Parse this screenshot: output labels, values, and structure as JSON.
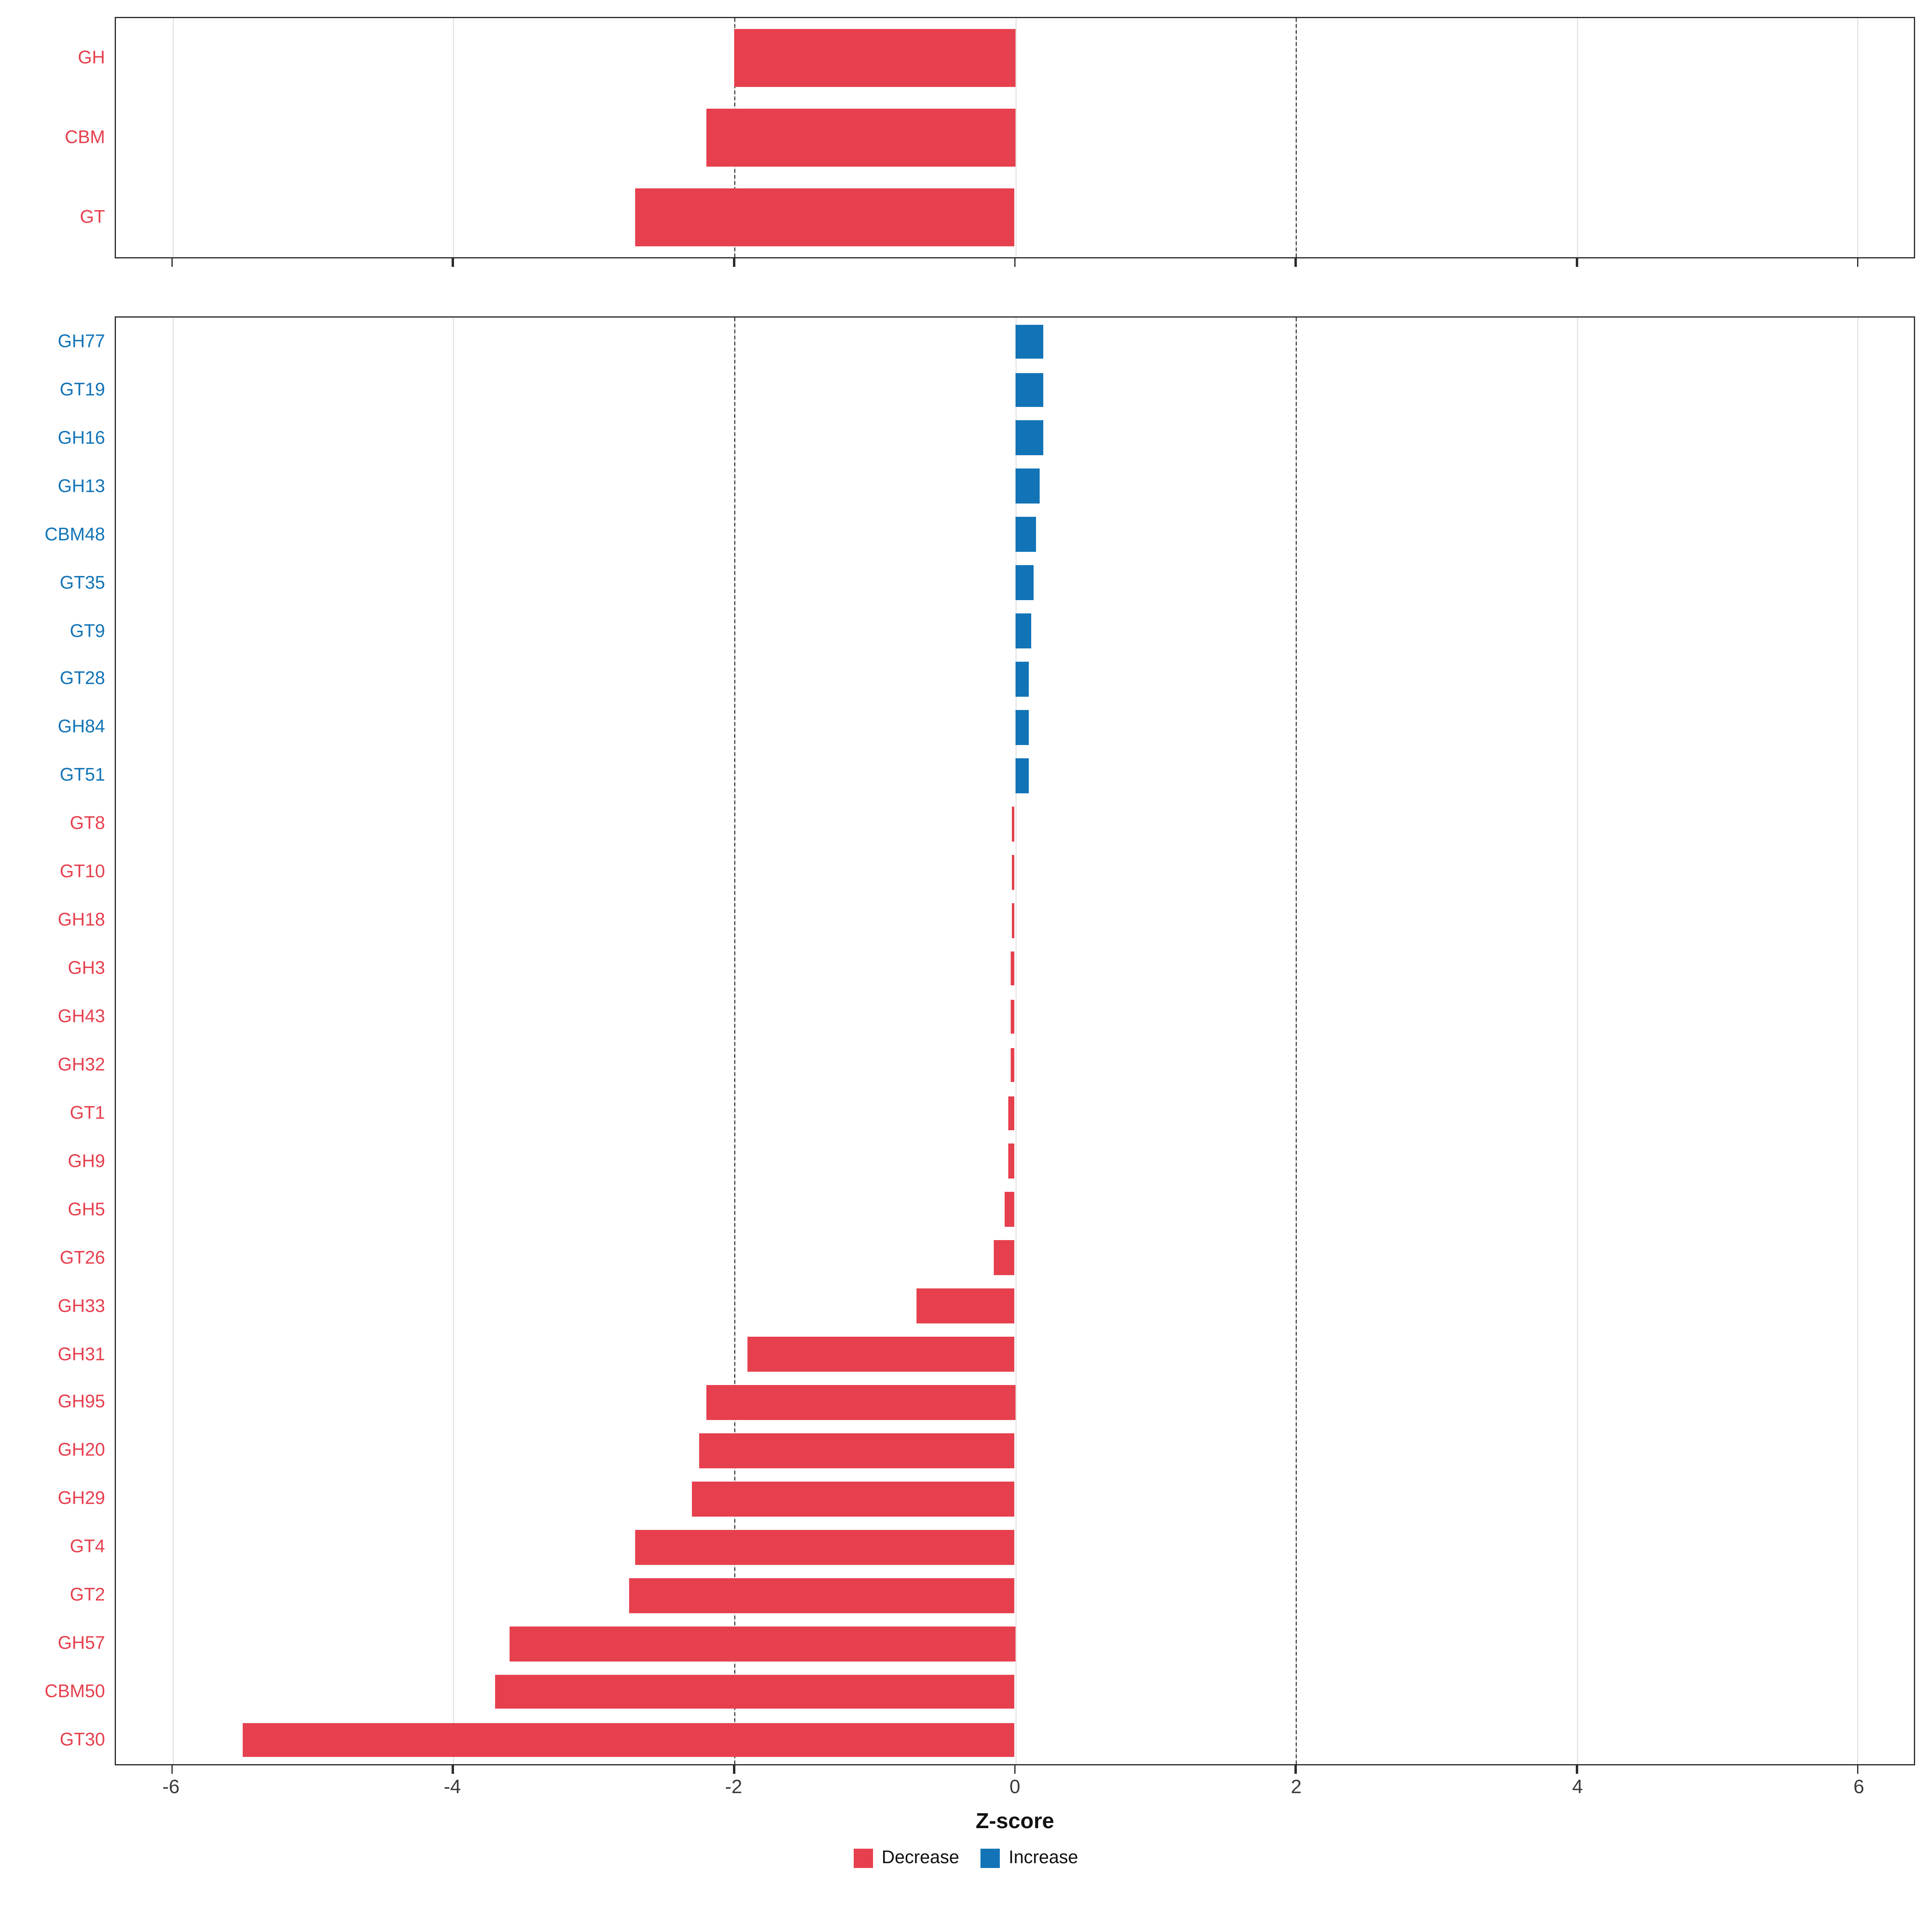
{
  "chart_meta": {
    "xlabel": "Z-score",
    "xdomain": [
      -6.4,
      6.4
    ],
    "xticks": [
      -6,
      -4,
      -2,
      0,
      2,
      4,
      6
    ],
    "xtick_labels": [
      "-6",
      "-4",
      "-2",
      "0",
      "2",
      "4",
      "6"
    ],
    "thresholds": [
      -2,
      2
    ],
    "grid": true,
    "legend_position": "bottom"
  },
  "colors": {
    "decrease": "#E6404E",
    "increase": "#1274B7",
    "gridline": "#e4e4e4",
    "threshold": "#4a4a4a"
  },
  "legend": {
    "items": [
      {
        "label": "Decrease",
        "color": "#E6404E"
      },
      {
        "label": "Increase",
        "color": "#1274B7"
      }
    ]
  },
  "chart_data": [
    {
      "type": "bar",
      "orientation": "horizontal",
      "title": "",
      "xlabel": "Z-score",
      "xlim": [
        -6,
        6
      ],
      "rows": [
        {
          "label": "GH",
          "value": -2.0,
          "group": "decrease"
        },
        {
          "label": "CBM",
          "value": -2.2,
          "group": "decrease"
        },
        {
          "label": "GT",
          "value": -2.7,
          "group": "decrease"
        }
      ]
    },
    {
      "type": "bar",
      "orientation": "horizontal",
      "title": "",
      "xlabel": "Z-score",
      "xlim": [
        -6,
        6
      ],
      "rows": [
        {
          "label": "GH77",
          "value": 0.2,
          "group": "increase"
        },
        {
          "label": "GT19",
          "value": 0.2,
          "group": "increase"
        },
        {
          "label": "GH16",
          "value": 0.2,
          "group": "increase"
        },
        {
          "label": "GH13",
          "value": 0.18,
          "group": "increase"
        },
        {
          "label": "CBM48",
          "value": 0.15,
          "group": "increase"
        },
        {
          "label": "GT35",
          "value": 0.13,
          "group": "increase"
        },
        {
          "label": "GT9",
          "value": 0.12,
          "group": "increase"
        },
        {
          "label": "GT28",
          "value": 0.1,
          "group": "increase"
        },
        {
          "label": "GH84",
          "value": 0.1,
          "group": "increase"
        },
        {
          "label": "GT51",
          "value": 0.1,
          "group": "increase"
        },
        {
          "label": "GT8",
          "value": -0.02,
          "group": "decrease"
        },
        {
          "label": "GT10",
          "value": -0.02,
          "group": "decrease"
        },
        {
          "label": "GH18",
          "value": -0.02,
          "group": "decrease"
        },
        {
          "label": "GH3",
          "value": -0.03,
          "group": "decrease"
        },
        {
          "label": "GH43",
          "value": -0.03,
          "group": "decrease"
        },
        {
          "label": "GH32",
          "value": -0.03,
          "group": "decrease"
        },
        {
          "label": "GT1",
          "value": -0.05,
          "group": "decrease"
        },
        {
          "label": "GH9",
          "value": -0.05,
          "group": "decrease"
        },
        {
          "label": "GH5",
          "value": -0.07,
          "group": "decrease"
        },
        {
          "label": "GT26",
          "value": -0.15,
          "group": "decrease"
        },
        {
          "label": "GH33",
          "value": -0.7,
          "group": "decrease"
        },
        {
          "label": "GH31",
          "value": -1.9,
          "group": "decrease"
        },
        {
          "label": "GH95",
          "value": -2.2,
          "group": "decrease"
        },
        {
          "label": "GH20",
          "value": -2.25,
          "group": "decrease"
        },
        {
          "label": "GH29",
          "value": -2.3,
          "group": "decrease"
        },
        {
          "label": "GT4",
          "value": -2.7,
          "group": "decrease"
        },
        {
          "label": "GT2",
          "value": -2.75,
          "group": "decrease"
        },
        {
          "label": "GH57",
          "value": -3.6,
          "group": "decrease"
        },
        {
          "label": "CBM50",
          "value": -3.7,
          "group": "decrease"
        },
        {
          "label": "GT30",
          "value": -5.5,
          "group": "decrease"
        }
      ]
    }
  ]
}
